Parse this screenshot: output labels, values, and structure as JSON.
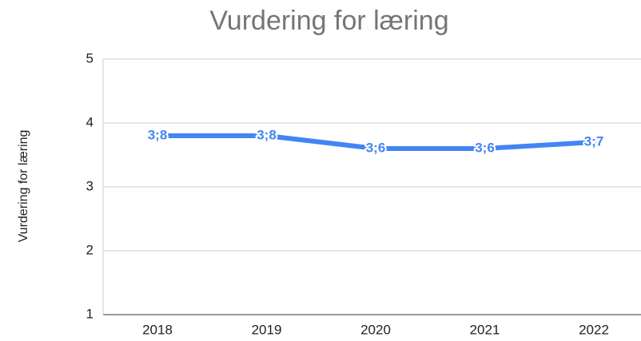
{
  "chart_data": {
    "type": "line",
    "title": "Vurdering for læring",
    "y_label": "Vurdering for læring",
    "categories": [
      "2018",
      "2019",
      "2020",
      "2021",
      "2022"
    ],
    "series": [
      {
        "name": "Vurdering for læring",
        "color": "#4285f4",
        "values": [
          3.8,
          3.8,
          3.6,
          3.6,
          3.7
        ],
        "value_labels": [
          "3;8",
          "3;8",
          "3;6",
          "3;6",
          "3;7"
        ]
      }
    ],
    "ylim": [
      1,
      5
    ],
    "yticks": [
      1,
      2,
      3,
      4,
      5
    ],
    "grid": true
  }
}
